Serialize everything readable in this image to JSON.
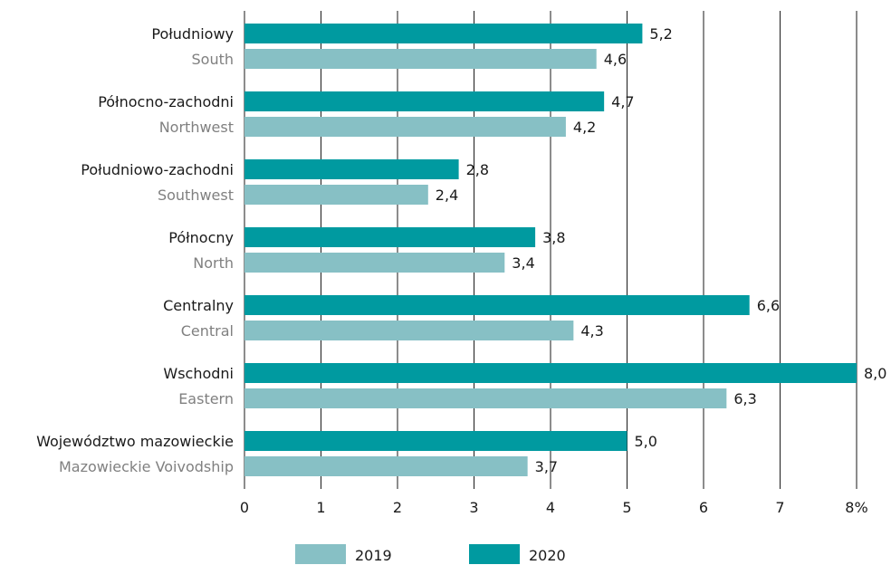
{
  "chart_data": {
    "type": "bar",
    "orientation": "horizontal",
    "categories": [
      {
        "label": "Południowy",
        "sublabel": "South"
      },
      {
        "label": "Północno-zachodni",
        "sublabel": "Northwest"
      },
      {
        "label": "Południowo-zachodni",
        "sublabel": "Southwest"
      },
      {
        "label": "Północny",
        "sublabel": "North"
      },
      {
        "label": "Centralny",
        "sublabel": "Central"
      },
      {
        "label": "Wschodni",
        "sublabel": "Eastern"
      },
      {
        "label": "Województwo mazowieckie",
        "sublabel": "Mazowieckie Voivodship"
      }
    ],
    "series": [
      {
        "name": "2020",
        "color": "#009aa0",
        "values": [
          5.2,
          4.7,
          2.8,
          3.8,
          6.6,
          8.0,
          5.0
        ],
        "labels": [
          "5,2",
          "4,7",
          "2,8",
          "3,8",
          "6,6",
          "8,0",
          "5,0"
        ]
      },
      {
        "name": "2019",
        "color": "#87c0c5",
        "values": [
          4.6,
          4.2,
          2.4,
          3.4,
          4.3,
          6.3,
          3.7
        ],
        "labels": [
          "4,6",
          "4,2",
          "2,4",
          "3,4",
          "4,3",
          "6,3",
          "3,7"
        ]
      }
    ],
    "x_ticks": [
      "0",
      "1",
      "2",
      "3",
      "4",
      "5",
      "6",
      "7",
      "8%"
    ],
    "xlim": [
      0,
      8
    ],
    "grid": true,
    "legend": {
      "position": "bottom",
      "order": [
        "2019",
        "2020"
      ]
    },
    "title": "",
    "xlabel": "",
    "ylabel": ""
  }
}
